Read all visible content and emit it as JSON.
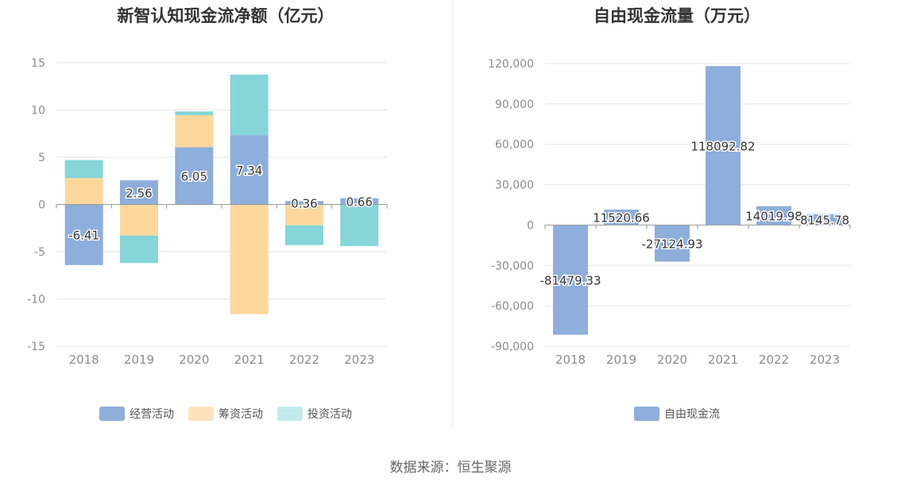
{
  "source_label": "数据来源：恒生聚源",
  "chart_data": [
    {
      "type": "bar",
      "stacked": true,
      "title": "新智认知现金流净额（亿元）",
      "categories": [
        "2018",
        "2019",
        "2020",
        "2021",
        "2022",
        "2023"
      ],
      "ylim": [
        -15,
        15
      ],
      "yticks": [
        -15,
        -10,
        -5,
        0,
        5,
        10,
        15
      ],
      "grid": true,
      "legend_position": "bottom",
      "series": [
        {
          "name": "经营活动",
          "color": "#8eaedb",
          "values": [
            -6.41,
            2.56,
            6.05,
            7.34,
            0.36,
            0.66
          ],
          "labels": [
            "-6.41",
            "2.56",
            "6.05",
            "7.34",
            "0.36",
            "0.66"
          ]
        },
        {
          "name": "筹资活动",
          "color": "#fdd89c",
          "values": [
            2.8,
            -3.3,
            3.4,
            -11.6,
            -2.2,
            0.0
          ]
        },
        {
          "name": "投资活动",
          "color": "#85d5d9",
          "values": [
            1.9,
            -2.9,
            0.4,
            6.4,
            -2.1,
            -4.4
          ]
        }
      ],
      "legend_colors": [
        "#8eaedb",
        "#fde3bd",
        "#c2eaed"
      ]
    },
    {
      "type": "bar",
      "title": "自由现金流量（万元）",
      "categories": [
        "2018",
        "2019",
        "2020",
        "2021",
        "2022",
        "2023"
      ],
      "ylim": [
        -90000,
        120000
      ],
      "yticks": [
        -90000,
        -60000,
        -30000,
        0,
        30000,
        60000,
        90000,
        120000
      ],
      "ytick_labels": [
        "-90,000",
        "-60,000",
        "-30,000",
        "0",
        "30,000",
        "60,000",
        "90,000",
        "120,000"
      ],
      "grid": true,
      "legend_position": "bottom",
      "series": [
        {
          "name": "自由现金流",
          "color": "#8eaedb",
          "values": [
            -81479.33,
            11520.66,
            -27124.93,
            118092.82,
            14019.98,
            8145.78
          ],
          "labels": [
            "-81479.33",
            "11520.66",
            "-27124.93",
            "118092.82",
            "14019.98",
            "8145.78"
          ]
        }
      ],
      "legend_colors": [
        "#8eaedb"
      ]
    }
  ]
}
